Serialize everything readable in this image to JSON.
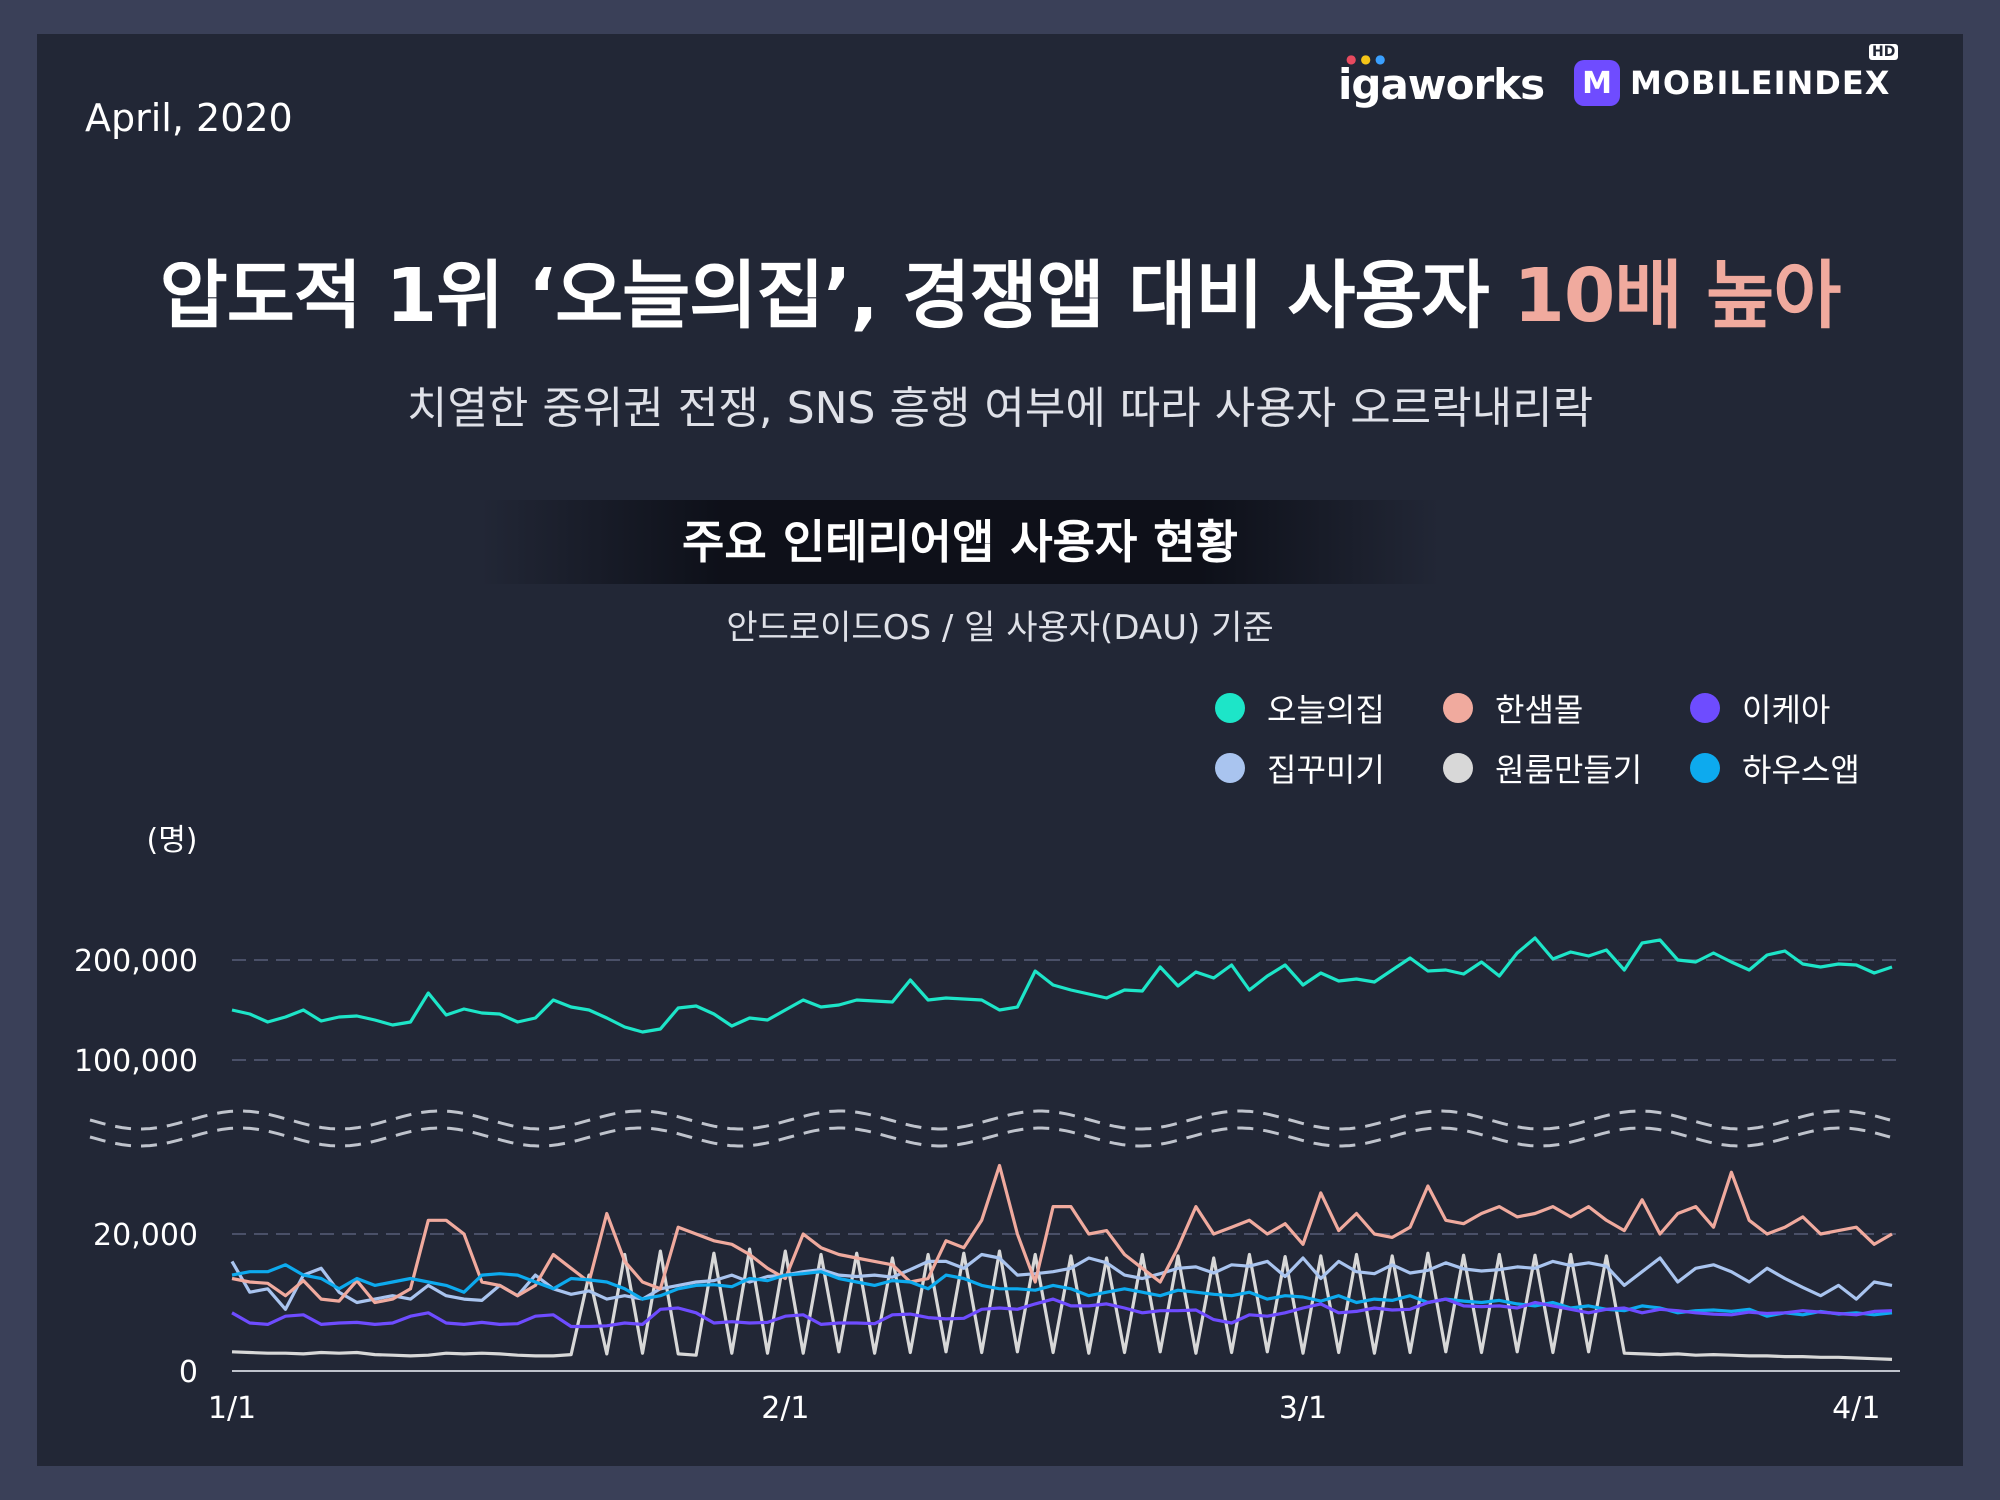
{
  "header": {
    "date": "April, 2020",
    "brand_left": "igaworks",
    "brand_right": "MOBILEINDEX",
    "brand_right_mark": "M",
    "brand_right_badge": "HD"
  },
  "headline": {
    "title_main": "압도적 1위 ‘오늘의집’, 경쟁앱 대비 사용자 ",
    "title_highlight": "10배 높아",
    "subtitle": "치열한 중위권 전쟁, SNS 흥행 여부에 따라 사용자 오르락내리락"
  },
  "colors": {
    "background": "#222736",
    "frame": "#3a4058",
    "highlight": "#f0aa9e"
  },
  "chart_data": {
    "type": "line",
    "title": "주요 인테리어앱 사용자 현황",
    "subtitle": "안드로이드OS / 일 사용자(DAU) 기준",
    "unit_label": "(명)",
    "x_tick_labels": [
      "1/1",
      "2/1",
      "3/1",
      "4/1"
    ],
    "y_tick_labels": [
      "0",
      "20,000",
      "100,000",
      "200,000"
    ],
    "axis_break": true,
    "grid": true,
    "legend_position": "top-right",
    "x": "daily, 2020-01-01 to 2020-04-04",
    "series": [
      {
        "name": "오늘의집",
        "color": "#1de5c8",
        "values": [
          150000,
          146000,
          138000,
          143000,
          150000,
          139000,
          143000,
          144000,
          140000,
          135000,
          138000,
          167000,
          145000,
          151000,
          147000,
          146000,
          138000,
          142000,
          160000,
          153000,
          150000,
          142000,
          133000,
          128000,
          131000,
          152000,
          154000,
          146000,
          134000,
          142000,
          140000,
          150000,
          160000,
          153000,
          155000,
          160000,
          159000,
          158000,
          180000,
          160000,
          162000,
          161000,
          160000,
          150000,
          153000,
          189000,
          175000,
          170000,
          166000,
          162000,
          170000,
          169000,
          193000,
          174000,
          188000,
          182000,
          195000,
          170000,
          184000,
          195000,
          175000,
          187000,
          179000,
          181000,
          178000,
          190000,
          202000,
          189000,
          190000,
          186000,
          198000,
          184000,
          207000,
          222000,
          201000,
          208000,
          204000,
          210000,
          190000,
          217000,
          220000,
          200000,
          198000,
          207000,
          198000,
          190000,
          205000,
          209000,
          196000,
          193000,
          196000,
          195000,
          187000,
          193000
        ]
      },
      {
        "name": "한샘몰",
        "color": "#f0aa9e",
        "values": [
          13500,
          13000,
          12800,
          11000,
          13200,
          10500,
          10200,
          13200,
          10000,
          10500,
          12000,
          22000,
          22000,
          20000,
          13000,
          12500,
          11000,
          12500,
          17000,
          15000,
          13000,
          23000,
          16000,
          13000,
          12000,
          21000,
          20000,
          19000,
          18500,
          17000,
          15000,
          13500,
          20000,
          18000,
          17000,
          16500,
          16000,
          15500,
          13000,
          13500,
          19000,
          18000,
          22000,
          30000,
          20000,
          13000,
          24000,
          24000,
          20000,
          20500,
          17000,
          15000,
          13000,
          18000,
          24000,
          20000,
          21000,
          22000,
          20000,
          21500,
          18500,
          26000,
          20500,
          23000,
          20000,
          19500,
          21000,
          27000,
          22000,
          21500,
          23000,
          24000,
          22500,
          23000,
          24000,
          22500,
          24000,
          22000,
          20500,
          25000,
          20000,
          23000,
          24000,
          21000,
          29000,
          22000,
          20000,
          21000,
          22500,
          20000,
          20500,
          21000,
          18500,
          20000
        ]
      },
      {
        "name": "이케아",
        "color": "#6e4cff",
        "values": [
          8500,
          7000,
          6800,
          8000,
          8200,
          6800,
          7000,
          7100,
          6800,
          7000,
          8000,
          8500,
          7000,
          6800,
          7100,
          6800,
          6900,
          8000,
          8200,
          6500,
          6500,
          6600,
          7000,
          6800,
          9000,
          9200,
          8500,
          7000,
          7200,
          7000,
          7100,
          8000,
          8200,
          6800,
          7000,
          7000,
          6900,
          8200,
          8300,
          7800,
          7600,
          7700,
          9000,
          9200,
          9000,
          9800,
          10500,
          9500,
          9500,
          9800,
          9200,
          8500,
          8800,
          8800,
          8900,
          7500,
          7000,
          8200,
          8000,
          8500,
          9200,
          9800,
          8500,
          8700,
          9200,
          8900,
          9000,
          10000,
          10500,
          9500,
          9400,
          9500,
          9200,
          10000,
          9500,
          9000,
          8500,
          9000,
          9200,
          8500,
          9000,
          8800,
          8500,
          8300,
          8200,
          8600,
          8400,
          8500,
          8800,
          8600,
          8400,
          8200,
          8700,
          8800
        ]
      },
      {
        "name": "집꾸미기",
        "color": "#a9c4ef",
        "values": [
          16000,
          11500,
          12000,
          9000,
          14000,
          15000,
          11500,
          10000,
          10500,
          11000,
          10500,
          12500,
          11000,
          10500,
          10300,
          12500,
          11000,
          14000,
          12000,
          11200,
          11700,
          10500,
          11000,
          10500,
          12000,
          12500,
          13000,
          13200,
          14000,
          13000,
          13800,
          14000,
          14500,
          14800,
          14000,
          13800,
          14000,
          13700,
          14800,
          16000,
          16000,
          15000,
          17000,
          16500,
          14000,
          14200,
          14500,
          15000,
          16500,
          15800,
          14000,
          13500,
          14200,
          15000,
          15200,
          14300,
          15500,
          15300,
          16000,
          13800,
          16500,
          13500,
          16000,
          14500,
          14200,
          15500,
          14300,
          14700,
          15800,
          14900,
          14600,
          14800,
          15200,
          15000,
          16000,
          15400,
          15800,
          15300,
          12500,
          14500,
          16500,
          13000,
          15000,
          15500,
          14500,
          13000,
          15000,
          13500,
          12200,
          11000,
          12500,
          10500,
          13000,
          12500
        ]
      },
      {
        "name": "원룸만들기",
        "color": "#d8d8d8",
        "values": [
          2800,
          2700,
          2600,
          2600,
          2500,
          2700,
          2600,
          2700,
          2400,
          2300,
          2200,
          2300,
          2600,
          2500,
          2600,
          2500,
          2300,
          2200,
          2200,
          2400,
          14000,
          2500,
          17000,
          2600,
          17500,
          2500,
          2300,
          17200,
          2600,
          17800,
          2600,
          17500,
          2600,
          17000,
          2800,
          17200,
          2600,
          16500,
          2700,
          17000,
          2800,
          17200,
          2700,
          17500,
          2800,
          17000,
          2700,
          16800,
          2600,
          16500,
          2700,
          17000,
          2800,
          16800,
          2600,
          16500,
          2700,
          17000,
          2800,
          16700,
          2600,
          16800,
          2700,
          17000,
          2600,
          16800,
          2700,
          17200,
          2800,
          16900,
          2700,
          17000,
          2800,
          16900,
          2700,
          17000,
          2800,
          16800,
          2600,
          2500,
          2400,
          2500,
          2300,
          2400,
          2300,
          2200,
          2200,
          2100,
          2100,
          2000,
          2000,
          1900,
          1800,
          1700
        ]
      },
      {
        "name": "하우스앱",
        "color": "#0daaee",
        "values": [
          14000,
          14500,
          14500,
          15500,
          14000,
          13500,
          12000,
          13500,
          12500,
          13000,
          13500,
          13000,
          12500,
          11500,
          14000,
          14200,
          14000,
          13000,
          12000,
          13500,
          13300,
          13000,
          12000,
          10500,
          11000,
          12000,
          12500,
          12600,
          12300,
          13500,
          13200,
          14000,
          14200,
          14500,
          13500,
          13000,
          12500,
          13200,
          13000,
          12000,
          14000,
          13500,
          12500,
          12000,
          12000,
          11800,
          12500,
          12000,
          11000,
          11500,
          12000,
          11500,
          11000,
          11800,
          11500,
          11200,
          11000,
          11500,
          10500,
          11000,
          10800,
          10200,
          11000,
          10000,
          10500,
          10300,
          11000,
          10000,
          10500,
          10200,
          10000,
          10300,
          9800,
          9500,
          10000,
          9200,
          9500,
          9000,
          8800,
          9500,
          9200,
          8500,
          8800,
          8900,
          8700,
          9000,
          8000,
          8500,
          8200,
          8700,
          8300,
          8500,
          8200,
          8500
        ]
      }
    ]
  }
}
